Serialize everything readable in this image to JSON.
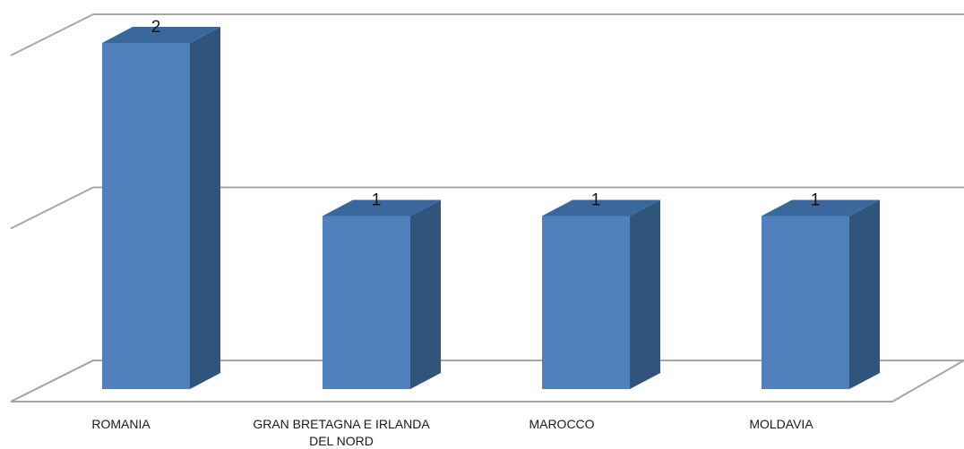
{
  "chart_data": {
    "type": "bar",
    "style": "3d-column",
    "categories": [
      "ROMANIA",
      "GRAN BRETAGNA E IRLANDA DEL NORD",
      "MAROCCO",
      "MOLDAVIA"
    ],
    "category_label_lines": [
      [
        "ROMANIA"
      ],
      [
        "GRAN BRETAGNA E IRLANDA",
        "DEL NORD"
      ],
      [
        "MAROCCO"
      ],
      [
        "MOLDAVIA"
      ]
    ],
    "values": [
      2,
      1,
      1,
      1
    ],
    "data_labels": [
      "2",
      "1",
      "1",
      "1"
    ],
    "ylim": [
      0,
      2
    ],
    "grid": true,
    "legend": "none",
    "title": "",
    "xlabel": "",
    "ylabel": "",
    "colors": {
      "front": "#4f81bd",
      "side": "#31547d",
      "top": "#3a689c",
      "gridline": "#a6a6a6",
      "label": "#1a1a1a"
    }
  }
}
